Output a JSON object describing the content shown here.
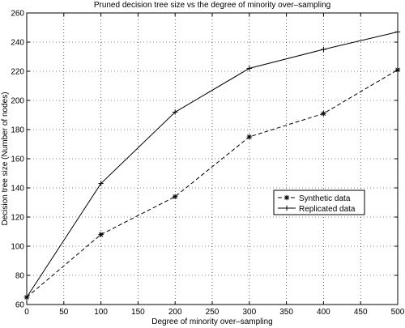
{
  "chart_data": {
    "type": "line",
    "title": "Pruned decision tree size vs the degree of minority over–sampling",
    "xlabel": "Degree of minority over–sampling",
    "ylabel": "Decision tree size (Number of nodes)",
    "xlim": [
      0,
      500
    ],
    "ylim": [
      60,
      260
    ],
    "xticks": [
      0,
      50,
      100,
      150,
      200,
      250,
      300,
      350,
      400,
      450,
      500
    ],
    "yticks": [
      60,
      80,
      100,
      120,
      140,
      160,
      180,
      200,
      220,
      240,
      260
    ],
    "grid": true,
    "legend_position": "center-right",
    "series": [
      {
        "name": "Synthetic data",
        "style": "dashed",
        "marker": "asterisk",
        "x": [
          0,
          100,
          200,
          300,
          400,
          500
        ],
        "y": [
          65,
          108,
          134,
          175,
          191,
          221
        ]
      },
      {
        "name": "Replicated data",
        "style": "solid",
        "marker": "plus",
        "x": [
          0,
          100,
          200,
          300,
          400,
          500
        ],
        "y": [
          65,
          143,
          192,
          222,
          235,
          247
        ]
      }
    ],
    "colors": {
      "line": "#000000",
      "grid": "#000000",
      "background": "#ffffff"
    }
  }
}
